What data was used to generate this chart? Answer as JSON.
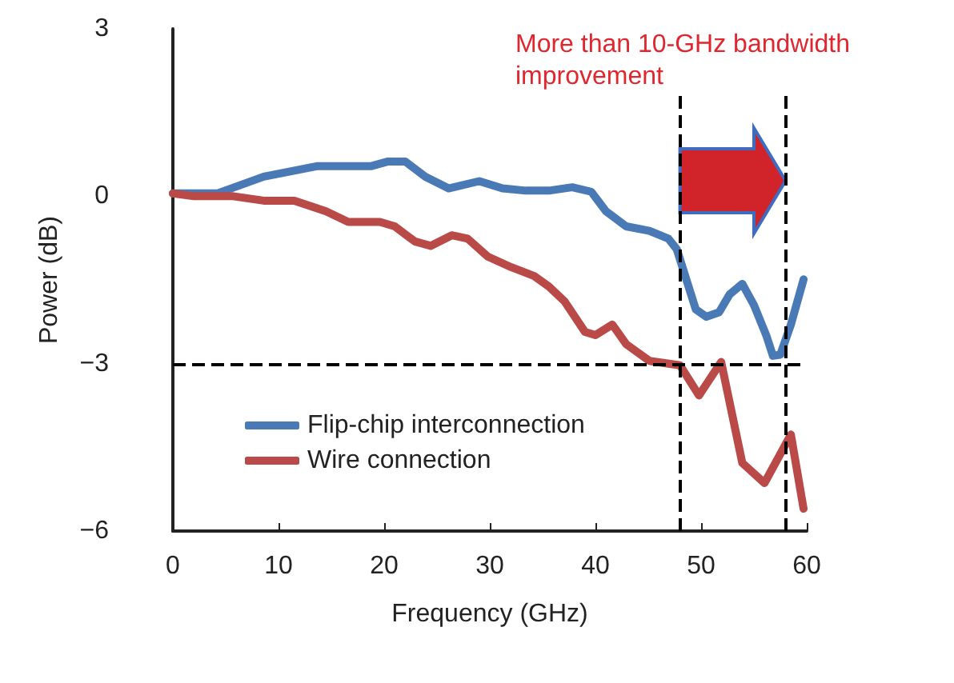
{
  "chart_data": {
    "type": "line",
    "xlabel": "Frequency (GHz)",
    "ylabel": "Power (dB)",
    "xlim": [
      0,
      60
    ],
    "xticks": [
      0,
      10,
      20,
      30,
      40,
      50,
      60
    ],
    "ylim": [
      -6,
      3
    ],
    "yticks": [
      -6,
      -3,
      0,
      3
    ],
    "grid": false,
    "legend": "bottom left",
    "line_style": "solid",
    "marker": "none",
    "annotations": [
      "More than 10-GHz bandwidth improvement"
    ],
    "ref_lines": [
      {
        "axis": "x",
        "value": 48,
        "color": "#000000",
        "line_style": "dashed"
      },
      {
        "axis": "x",
        "value": 58,
        "color": "#000000",
        "line_style": "dashed"
      },
      {
        "axis": "y",
        "value": -3,
        "color": "#000000",
        "line_style": "dashed"
      }
    ],
    "series": [
      {
        "name": "Flip-chip interconnection",
        "color": "#4a7ab5",
        "x": [
          0,
          4.2,
          8.6,
          13.7,
          18.8,
          20.3,
          22,
          23.9,
          26.1,
          29,
          31.2,
          33.4,
          35.6,
          37.8,
          39.6,
          41,
          42.9,
          45.1,
          46.9,
          47.7,
          49.5,
          50.5,
          51.7,
          52.7,
          53.9,
          55,
          56.2,
          56.8,
          57.5,
          58.5,
          59.7
        ],
        "values": [
          0.05,
          0.05,
          0.35,
          0.54,
          0.54,
          0.62,
          0.62,
          0.35,
          0.14,
          0.27,
          0.14,
          0.1,
          0.1,
          0.16,
          0.08,
          -0.27,
          -0.54,
          -0.62,
          -0.76,
          -0.95,
          -2.03,
          -2.16,
          -2.08,
          -1.76,
          -1.57,
          -1.95,
          -2.51,
          -2.86,
          -2.84,
          -2.3,
          -1.49
        ]
      },
      {
        "name": "Wire connection",
        "color": "#b94a48",
        "x": [
          0,
          2,
          5.7,
          8.6,
          11.5,
          14.5,
          16.6,
          19.6,
          21,
          22.9,
          24.4,
          26.4,
          27.9,
          29.8,
          32,
          34.2,
          35.6,
          37.1,
          39,
          40,
          41.6,
          42.9,
          45.1,
          48,
          49.8,
          51.9,
          53.9,
          56,
          58.5,
          59.7
        ],
        "values": [
          0.05,
          0,
          0,
          -0.08,
          -0.08,
          -0.27,
          -0.46,
          -0.46,
          -0.54,
          -0.81,
          -0.89,
          -0.7,
          -0.76,
          -1.08,
          -1.27,
          -1.43,
          -1.62,
          -1.89,
          -2.43,
          -2.49,
          -2.3,
          -2.65,
          -2.95,
          -3.03,
          -3.57,
          -2.97,
          -4.78,
          -5.14,
          -4.27,
          -5.6
        ]
      }
    ]
  }
}
